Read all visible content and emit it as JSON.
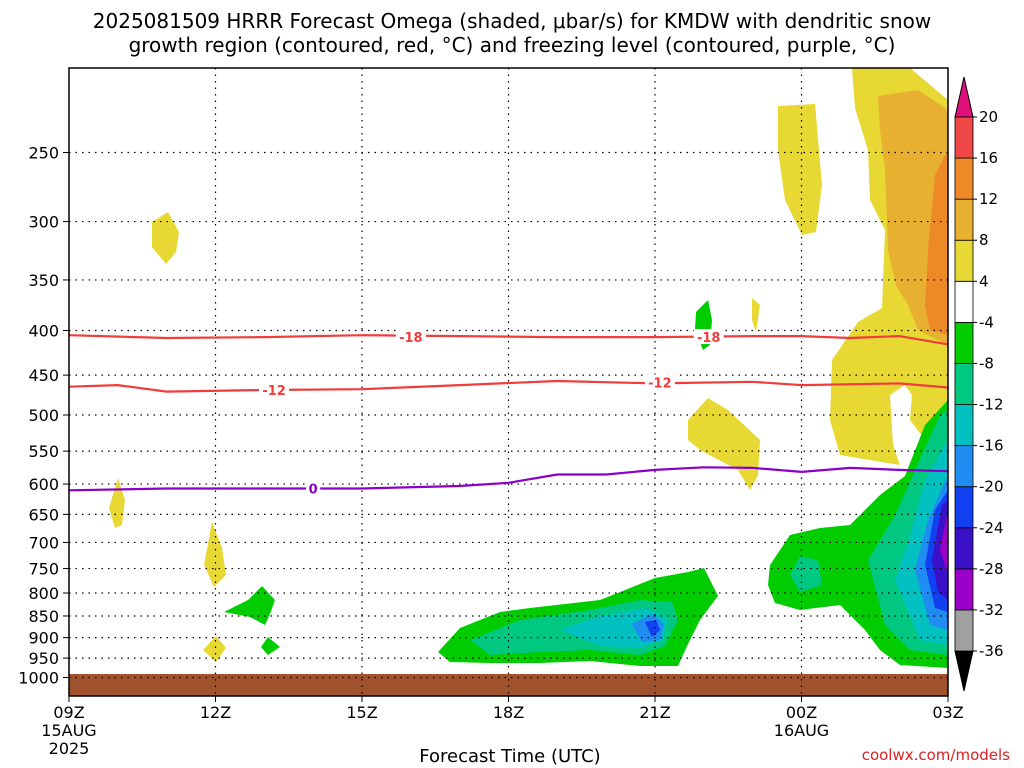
{
  "title": {
    "line1": "2025081509 HRRR Forecast Omega (shaded, μbar/s) for KMDW with dendritic snow",
    "line2": "growth region (contoured, red, °C) and freezing level (contoured, purple, °C)"
  },
  "credit": "coolwx.com/models",
  "chart_data": {
    "type": "heatmap",
    "title": "2025081509 HRRR Forecast Omega (shaded, μbar/s) for KMDW with dendritic snow growth region (contoured, red, °C) and freezing level (contoured, purple, °C)",
    "xlabel": "Forecast Time (UTC)",
    "x_ticks": [
      {
        "hour": 0,
        "label": "09Z",
        "sub1": "15AUG",
        "sub2": "2025"
      },
      {
        "hour": 3,
        "label": "12Z",
        "sub1": "",
        "sub2": ""
      },
      {
        "hour": 6,
        "label": "15Z",
        "sub1": "",
        "sub2": ""
      },
      {
        "hour": 9,
        "label": "18Z",
        "sub1": "",
        "sub2": ""
      },
      {
        "hour": 12,
        "label": "21Z",
        "sub1": "",
        "sub2": ""
      },
      {
        "hour": 15,
        "label": "00Z",
        "sub1": "16AUG",
        "sub2": ""
      },
      {
        "hour": 18,
        "label": "03Z",
        "sub1": "",
        "sub2": ""
      }
    ],
    "y_ticks": [
      250,
      300,
      350,
      400,
      450,
      500,
      550,
      600,
      650,
      700,
      750,
      800,
      850,
      900,
      950,
      1000
    ],
    "y_scale": "log-pressure (inverted)",
    "ylim": [
      1000,
      200
    ],
    "grid": true,
    "colorbar": {
      "levels": [
        -36,
        -32,
        -28,
        -24,
        -20,
        -16,
        -12,
        -8,
        -4,
        4,
        8,
        12,
        16,
        20
      ],
      "colors": [
        "#000000",
        "#a0a0a0",
        "#9a00c8",
        "#3a10c8",
        "#1040f0",
        "#1e8cf0",
        "#00c0c0",
        "#00c880",
        "#00cc00",
        "#ffffff",
        "#e8d833",
        "#e8b030",
        "#ee8a25",
        "#f04848",
        "#e0107a"
      ]
    },
    "omega_features": [
      {
        "kind": "rising",
        "value": -8,
        "desc": "large rising band 17Z-22Z, 880-950 hPa",
        "min": -20
      },
      {
        "kind": "rising",
        "value": -16,
        "desc": "deep rising column 01Z-03Z, 500-950 hPa",
        "min": -32
      },
      {
        "kind": "rising",
        "value": -4,
        "desc": "small cell ~13Z 850 hPa"
      },
      {
        "kind": "rising",
        "value": -4,
        "desc": "small cell ~22Z 400 hPa"
      },
      {
        "kind": "sinking",
        "value": 4,
        "desc": "broad sinking region 00Z-03Z, 200-550 hPa",
        "max": 16
      },
      {
        "kind": "sinking",
        "value": 4,
        "desc": "small cells ~10Z, ~11Z, ~12Z"
      }
    ],
    "contours": [
      {
        "name": "-18",
        "color": "#f03c3c",
        "series": [
          {
            "hour": 0,
            "p": 405
          },
          {
            "hour": 2,
            "p": 408
          },
          {
            "hour": 4,
            "p": 407
          },
          {
            "hour": 6,
            "p": 405
          },
          {
            "hour": 8,
            "p": 406
          },
          {
            "hour": 10,
            "p": 407
          },
          {
            "hour": 12,
            "p": 407
          },
          {
            "hour": 14,
            "p": 406
          },
          {
            "hour": 15,
            "p": 406
          },
          {
            "hour": 16,
            "p": 408
          },
          {
            "hour": 17,
            "p": 406
          },
          {
            "hour": 18,
            "p": 415
          }
        ]
      },
      {
        "name": "-12",
        "color": "#f03c3c",
        "series": [
          {
            "hour": 0,
            "p": 464
          },
          {
            "hour": 1,
            "p": 462
          },
          {
            "hour": 2,
            "p": 470
          },
          {
            "hour": 4,
            "p": 468
          },
          {
            "hour": 6,
            "p": 467
          },
          {
            "hour": 8,
            "p": 462
          },
          {
            "hour": 10,
            "p": 457
          },
          {
            "hour": 12,
            "p": 460
          },
          {
            "hour": 14,
            "p": 458
          },
          {
            "hour": 15,
            "p": 462
          },
          {
            "hour": 17,
            "p": 460
          },
          {
            "hour": 18,
            "p": 465
          }
        ]
      },
      {
        "name": "0",
        "color": "#8a00c8",
        "series": [
          {
            "hour": 0,
            "p": 610
          },
          {
            "hour": 2,
            "p": 607
          },
          {
            "hour": 4,
            "p": 607
          },
          {
            "hour": 6,
            "p": 607
          },
          {
            "hour": 8,
            "p": 603
          },
          {
            "hour": 9,
            "p": 598
          },
          {
            "hour": 10,
            "p": 585
          },
          {
            "hour": 11,
            "p": 585
          },
          {
            "hour": 12,
            "p": 578
          },
          {
            "hour": 13,
            "p": 574
          },
          {
            "hour": 14,
            "p": 575
          },
          {
            "hour": 15,
            "p": 581
          },
          {
            "hour": 16,
            "p": 575
          },
          {
            "hour": 17,
            "p": 578
          },
          {
            "hour": 18,
            "p": 580
          }
        ]
      }
    ],
    "contour_labels": [
      {
        "text": "-18",
        "hour": 7,
        "p": 407,
        "color": "#f03c3c"
      },
      {
        "text": "-18",
        "hour": 13.1,
        "p": 407,
        "color": "#f03c3c"
      },
      {
        "text": "-12",
        "hour": 4.2,
        "p": 468,
        "color": "#f03c3c"
      },
      {
        "text": "-12",
        "hour": 12.1,
        "p": 459,
        "color": "#f03c3c"
      },
      {
        "text": "0",
        "hour": 5,
        "p": 607,
        "color": "#8a00c8"
      }
    ]
  }
}
